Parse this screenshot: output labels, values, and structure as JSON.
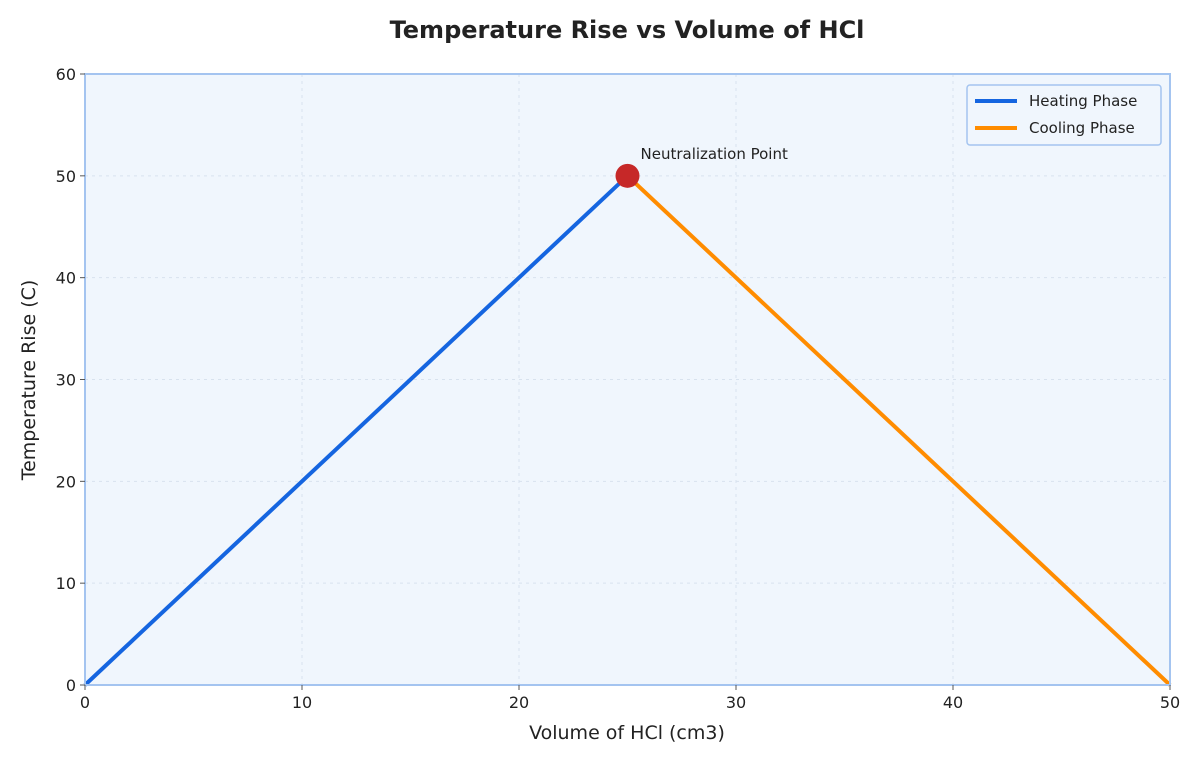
{
  "chart_data": {
    "type": "line",
    "title": "Temperature Rise vs Volume of HCl",
    "xlabel": "Volume of HCl (cm3)",
    "ylabel": "Temperature Rise (C)",
    "xlim": [
      0,
      50
    ],
    "ylim": [
      0,
      60
    ],
    "x_ticks": [
      0,
      10,
      20,
      30,
      40,
      50
    ],
    "y_ticks": [
      0,
      10,
      20,
      30,
      40,
      50,
      60
    ],
    "grid": true,
    "legend_position": "top-right",
    "series": [
      {
        "name": "Heating Phase",
        "color": "#1565e0",
        "x": [
          0,
          25
        ],
        "y": [
          0,
          50
        ]
      },
      {
        "name": "Cooling Phase",
        "color": "#ff8c00",
        "x": [
          25,
          50
        ],
        "y": [
          50,
          0
        ]
      }
    ],
    "markers": [
      {
        "x": 25,
        "y": 50,
        "color": "#c62828"
      }
    ],
    "annotations": [
      {
        "text": "Neutralization Point",
        "x": 25,
        "y": 50
      }
    ],
    "colors": {
      "plot_background": "#f0f6fd",
      "plot_border": "#a4c4f0",
      "grid": "#d8e2ee"
    }
  }
}
